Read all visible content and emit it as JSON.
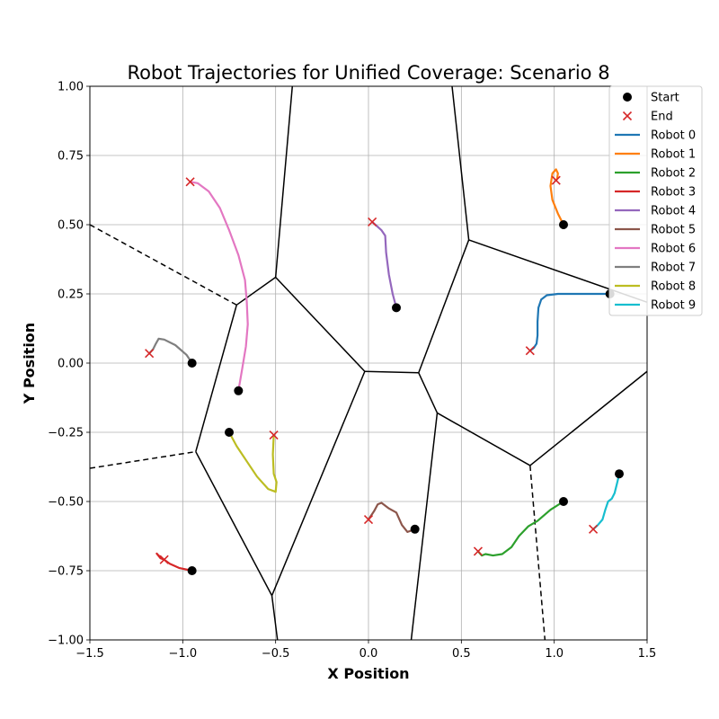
{
  "chart_data": {
    "type": "line",
    "title": "Robot Trajectories for Unified Coverage: Scenario 8",
    "xlabel": "X Position",
    "ylabel": "Y Position",
    "xlim": [
      -1.5,
      1.5
    ],
    "ylim": [
      -1.0,
      1.0
    ],
    "xticks": [
      "−1.5",
      "−1.0",
      "−0.5",
      "0.0",
      "0.5",
      "1.0",
      "1.5"
    ],
    "xtick_values": [
      -1.5,
      -1.0,
      -0.5,
      0.0,
      0.5,
      1.0,
      1.5
    ],
    "yticks": [
      "−1.00",
      "−0.75",
      "−0.50",
      "−0.25",
      "0.00",
      "0.25",
      "0.50",
      "0.75",
      "1.00"
    ],
    "ytick_values": [
      -1.0,
      -0.75,
      -0.5,
      -0.25,
      0.0,
      0.25,
      0.5,
      0.75,
      1.0
    ],
    "grid": true,
    "legend_position": "top-right",
    "legend": {
      "start_label": "Start",
      "end_label": "End"
    },
    "marker_colors": {
      "start": "#000000",
      "end": "#d62728"
    },
    "voronoi_solid": [
      [
        [
          -0.5,
          0.31
        ],
        [
          -0.02,
          -0.03
        ]
      ],
      [
        [
          -0.02,
          -0.03
        ],
        [
          0.27,
          -0.035
        ]
      ],
      [
        [
          0.27,
          -0.035
        ],
        [
          0.37,
          -0.18
        ]
      ],
      [
        [
          0.37,
          -0.18
        ],
        [
          0.87,
          -0.37
        ]
      ],
      [
        [
          0.87,
          -0.37
        ],
        [
          1.5,
          -0.03
        ]
      ],
      [
        [
          0.27,
          -0.035
        ],
        [
          0.54,
          0.445
        ]
      ],
      [
        [
          0.54,
          0.445
        ],
        [
          1.5,
          0.22
        ]
      ],
      [
        [
          0.54,
          0.445
        ],
        [
          0.45,
          1.0
        ]
      ],
      [
        [
          -0.5,
          0.31
        ],
        [
          -0.41,
          1.0
        ]
      ],
      [
        [
          -0.5,
          0.31
        ],
        [
          -0.71,
          0.21
        ]
      ],
      [
        [
          -0.71,
          0.21
        ],
        [
          -0.93,
          -0.32
        ]
      ],
      [
        [
          -0.93,
          -0.32
        ],
        [
          -0.52,
          -0.84
        ]
      ],
      [
        [
          -0.52,
          -0.84
        ],
        [
          -0.49,
          -1.0
        ]
      ],
      [
        [
          -0.52,
          -0.84
        ],
        [
          -0.02,
          -0.03
        ]
      ],
      [
        [
          0.37,
          -0.18
        ],
        [
          0.23,
          -1.0
        ]
      ]
    ],
    "voronoi_dashed": [
      [
        [
          -1.5,
          0.5
        ],
        [
          -0.71,
          0.21
        ]
      ],
      [
        [
          -1.5,
          -0.38
        ],
        [
          -0.93,
          -0.32
        ]
      ],
      [
        [
          0.87,
          -0.37
        ],
        [
          0.95,
          -1.0
        ]
      ]
    ],
    "series": [
      {
        "name": "Robot 0",
        "color": "#1f77b4",
        "start": [
          1.3,
          0.25
        ],
        "end": [
          0.87,
          0.045
        ],
        "points": [
          [
            1.3,
            0.25
          ],
          [
            1.15,
            0.25
          ],
          [
            1.02,
            0.25
          ],
          [
            0.96,
            0.245
          ],
          [
            0.93,
            0.23
          ],
          [
            0.915,
            0.2
          ],
          [
            0.91,
            0.15
          ],
          [
            0.91,
            0.1
          ],
          [
            0.905,
            0.07
          ],
          [
            0.89,
            0.055
          ],
          [
            0.87,
            0.045
          ]
        ]
      },
      {
        "name": "Robot 1",
        "color": "#ff7f0e",
        "start": [
          1.05,
          0.5
        ],
        "end": [
          1.01,
          0.66
        ],
        "points": [
          [
            1.05,
            0.5
          ],
          [
            1.02,
            0.54
          ],
          [
            0.99,
            0.59
          ],
          [
            0.98,
            0.64
          ],
          [
            0.99,
            0.685
          ],
          [
            1.01,
            0.7
          ],
          [
            1.02,
            0.685
          ],
          [
            1.015,
            0.665
          ],
          [
            1.01,
            0.66
          ]
        ]
      },
      {
        "name": "Robot 2",
        "color": "#2ca02c",
        "start": [
          1.05,
          -0.5
        ],
        "end": [
          0.59,
          -0.68
        ],
        "points": [
          [
            1.05,
            -0.5
          ],
          [
            0.98,
            -0.53
          ],
          [
            0.91,
            -0.57
          ],
          [
            0.86,
            -0.59
          ],
          [
            0.81,
            -0.625
          ],
          [
            0.77,
            -0.665
          ],
          [
            0.72,
            -0.69
          ],
          [
            0.67,
            -0.695
          ],
          [
            0.63,
            -0.69
          ],
          [
            0.61,
            -0.695
          ],
          [
            0.59,
            -0.68
          ]
        ]
      },
      {
        "name": "Robot 3",
        "color": "#d62728",
        "start": [
          -0.95,
          -0.75
        ],
        "end": [
          -1.1,
          -0.71
        ],
        "points": [
          [
            -0.95,
            -0.75
          ],
          [
            -1.02,
            -0.74
          ],
          [
            -1.07,
            -0.725
          ],
          [
            -1.1,
            -0.71
          ],
          [
            -1.13,
            -0.695
          ],
          [
            -1.14,
            -0.688
          ],
          [
            -1.12,
            -0.705
          ],
          [
            -1.1,
            -0.71
          ]
        ]
      },
      {
        "name": "Robot 4",
        "color": "#9467bd",
        "start": [
          0.15,
          0.2
        ],
        "end": [
          0.02,
          0.51
        ],
        "points": [
          [
            0.15,
            0.2
          ],
          [
            0.13,
            0.25
          ],
          [
            0.11,
            0.32
          ],
          [
            0.095,
            0.4
          ],
          [
            0.09,
            0.46
          ],
          [
            0.07,
            0.48
          ],
          [
            0.045,
            0.495
          ],
          [
            0.02,
            0.51
          ]
        ]
      },
      {
        "name": "Robot 5",
        "color": "#8c564b",
        "start": [
          0.25,
          -0.6
        ],
        "end": [
          0.0,
          -0.565
        ],
        "points": [
          [
            0.25,
            -0.6
          ],
          [
            0.21,
            -0.61
          ],
          [
            0.18,
            -0.585
          ],
          [
            0.15,
            -0.54
          ],
          [
            0.11,
            -0.525
          ],
          [
            0.07,
            -0.505
          ],
          [
            0.05,
            -0.51
          ],
          [
            0.03,
            -0.535
          ],
          [
            0.0,
            -0.565
          ]
        ]
      },
      {
        "name": "Robot 6",
        "color": "#e377c2",
        "start": [
          -0.7,
          -0.1
        ],
        "end": [
          -0.96,
          0.655
        ],
        "points": [
          [
            -0.7,
            -0.1
          ],
          [
            -0.68,
            -0.02
          ],
          [
            -0.66,
            0.06
          ],
          [
            -0.65,
            0.14
          ],
          [
            -0.655,
            0.22
          ],
          [
            -0.665,
            0.3
          ],
          [
            -0.7,
            0.39
          ],
          [
            -0.75,
            0.48
          ],
          [
            -0.8,
            0.56
          ],
          [
            -0.86,
            0.62
          ],
          [
            -0.92,
            0.65
          ],
          [
            -0.96,
            0.655
          ]
        ]
      },
      {
        "name": "Robot 7",
        "color": "#7f7f7f",
        "start": [
          -0.95,
          0.0
        ],
        "end": [
          -1.18,
          0.035
        ],
        "points": [
          [
            -0.95,
            0.0
          ],
          [
            -0.98,
            0.03
          ],
          [
            -1.04,
            0.065
          ],
          [
            -1.1,
            0.085
          ],
          [
            -1.13,
            0.088
          ],
          [
            -1.145,
            0.07
          ],
          [
            -1.16,
            0.05
          ],
          [
            -1.18,
            0.035
          ]
        ]
      },
      {
        "name": "Robot 8",
        "color": "#bcbd22",
        "start": [
          -0.75,
          -0.25
        ],
        "end": [
          -0.51,
          -0.26
        ],
        "points": [
          [
            -0.75,
            -0.25
          ],
          [
            -0.71,
            -0.3
          ],
          [
            -0.66,
            -0.35
          ],
          [
            -0.6,
            -0.41
          ],
          [
            -0.54,
            -0.455
          ],
          [
            -0.5,
            -0.465
          ],
          [
            -0.495,
            -0.43
          ],
          [
            -0.51,
            -0.4
          ],
          [
            -0.515,
            -0.33
          ],
          [
            -0.51,
            -0.26
          ]
        ]
      },
      {
        "name": "Robot 9",
        "color": "#17becf",
        "start": [
          1.35,
          -0.4
        ],
        "end": [
          1.21,
          -0.6
        ],
        "points": [
          [
            1.35,
            -0.4
          ],
          [
            1.34,
            -0.43
          ],
          [
            1.325,
            -0.47
          ],
          [
            1.31,
            -0.49
          ],
          [
            1.29,
            -0.5
          ],
          [
            1.275,
            -0.53
          ],
          [
            1.26,
            -0.565
          ],
          [
            1.235,
            -0.585
          ],
          [
            1.21,
            -0.6
          ]
        ]
      }
    ]
  }
}
